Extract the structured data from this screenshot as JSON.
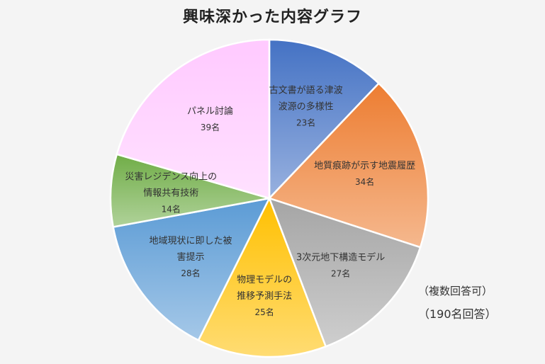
{
  "chart_data": {
    "type": "pie",
    "title": "興味深かった内容グラフ",
    "slices": [
      {
        "label_lines": [
          "古文書が語る津波",
          "波源の多様性"
        ],
        "value": 23,
        "value_label": "23名",
        "color": "#4472c4"
      },
      {
        "label_lines": [
          "地質痕跡が示す地震履歴"
        ],
        "value": 34,
        "value_label": "34名",
        "color": "#ed7d31"
      },
      {
        "label_lines": [
          "3次元地下構造モデル"
        ],
        "value": 27,
        "value_label": "27名",
        "color": "#a5a5a5"
      },
      {
        "label_lines": [
          "物理モデルの",
          "推移予測手法"
        ],
        "value": 25,
        "value_label": "25名",
        "color": "#ffc000"
      },
      {
        "label_lines": [
          "地域現状に即した被",
          "害提示"
        ],
        "value": 28,
        "value_label": "28名",
        "color": "#5b9bd5"
      },
      {
        "label_lines": [
          "災害レジデンス向上の",
          "情報共有技術"
        ],
        "value": 14,
        "value_label": "14名",
        "color": "#70ad47"
      },
      {
        "label_lines": [
          "パネル討論"
        ],
        "value": 39,
        "value_label": "39名",
        "color": "#ffc9ff"
      }
    ]
  },
  "notes": {
    "multi_answer": "（複数回答可）",
    "respondents": "（190名回答）"
  }
}
